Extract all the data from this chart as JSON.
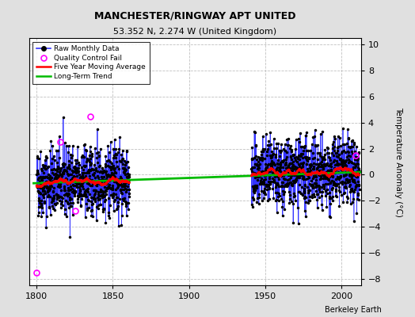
{
  "title": "MANCHESTER/RINGWAY APT UNITED",
  "subtitle": "53.352 N, 2.274 W (United Kingdom)",
  "ylabel": "Temperature Anomaly (°C)",
  "credit": "Berkeley Earth",
  "xlim": [
    1795,
    2013
  ],
  "ylim": [
    -8.5,
    10.5
  ],
  "yticks": [
    -8,
    -6,
    -4,
    -2,
    0,
    2,
    4,
    6,
    8,
    10
  ],
  "xticks": [
    1800,
    1850,
    1900,
    1950,
    2000
  ],
  "bg_color": "#e0e0e0",
  "plot_bg_color": "#ffffff",
  "raw_color": "#3333ff",
  "raw_marker_color": "#000000",
  "qc_fail_color": "#ff00ff",
  "moving_avg_color": "#ff0000",
  "trend_color": "#00bb00",
  "seed": 42,
  "trend_slope": 0.004,
  "trend_intercept": -0.25,
  "noise_std": 1.3
}
